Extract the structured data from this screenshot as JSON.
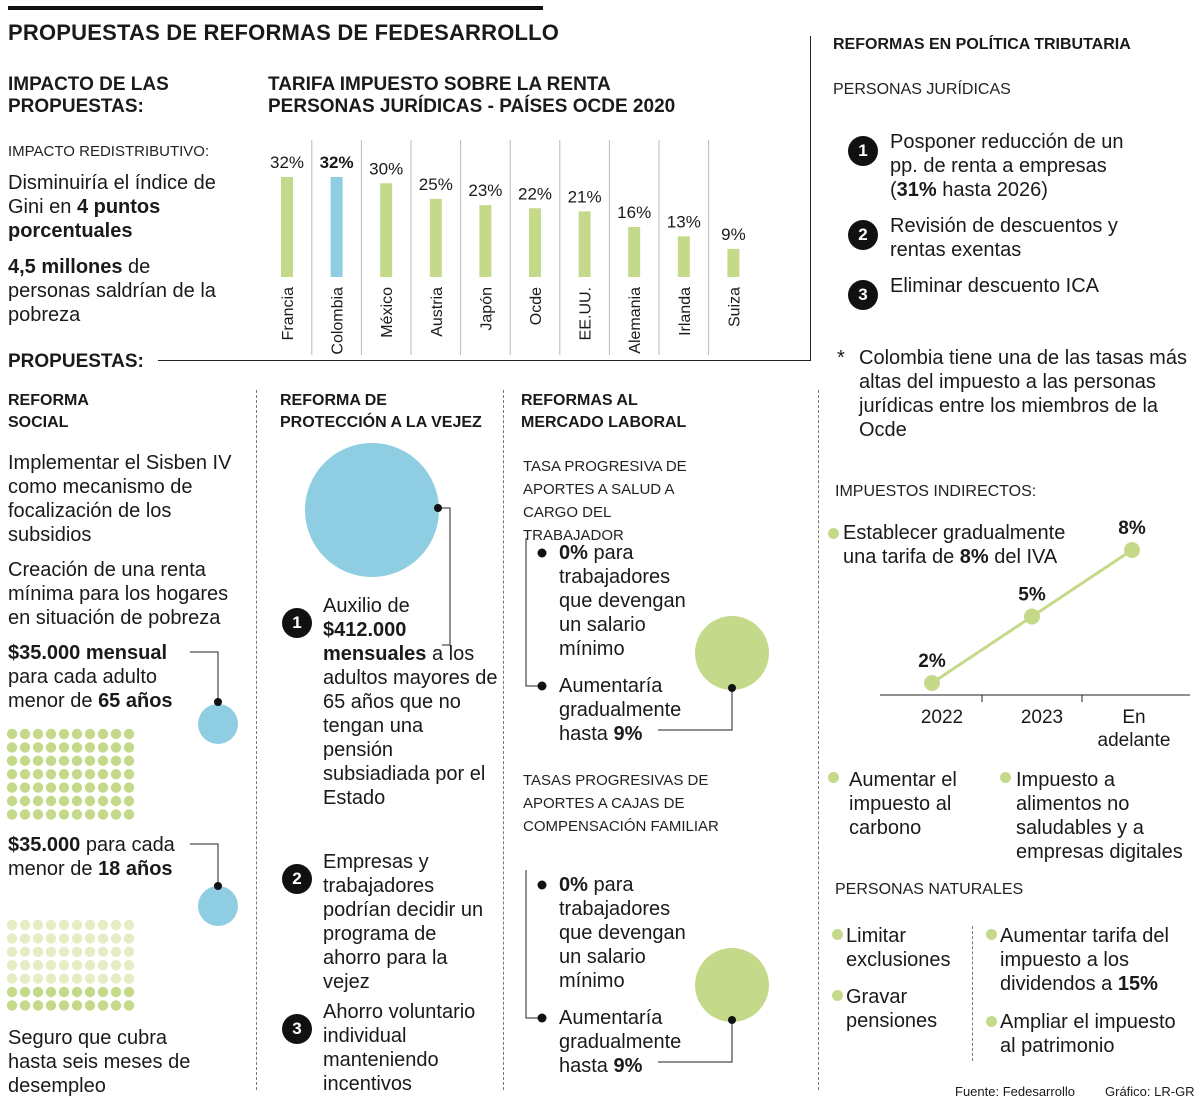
{
  "title": "PROPUESTAS DE REFORMAS DE FEDESARROLLO",
  "impacto": {
    "heading": "IMPACTO DE LAS PROPUESTAS:",
    "redistributivo_label": "IMPACTO REDISTRIBUTIVO:",
    "gini_pre": "Disminuiría el índice de Gini en ",
    "gini_bold": "4 puntos porcentuales",
    "pobreza_bold": "4,5 millones",
    "pobreza_rest": " de personas saldrían de la pobreza"
  },
  "chart_data": {
    "type": "bar",
    "title": "TARIFA IMPUESTO SOBRE LA RENTA PERSONAS JURÍDICAS - PAÍSES OCDE 2020",
    "categories": [
      "Francia",
      "Colombia",
      "México",
      "Austria",
      "Japón",
      "Ocde",
      "EE.UU.",
      "Alemania",
      "Irlanda",
      "Suiza"
    ],
    "values": [
      32,
      32,
      30,
      25,
      23,
      22,
      21,
      16,
      13,
      9
    ],
    "value_labels": [
      "32%",
      "32%",
      "30%",
      "25%",
      "23%",
      "22%",
      "21%",
      "16%",
      "13%",
      "9%"
    ],
    "highlight": "Colombia",
    "unit": "%",
    "ylim": [
      0,
      32
    ],
    "colors": {
      "default": "#c5d98a",
      "highlight": "#8fcde2"
    }
  },
  "propuestas_heading": "PROPUESTAS:",
  "social": {
    "heading": "REFORMA SOCIAL",
    "p1": "Implementar el Sisben IV como mecanismo de focalización de los subsidios",
    "p2": "Creación de una renta mínima para los hogares en situación de pobreza",
    "adult_bold": "$35.000 mensual",
    "adult_rest": " para cada adulto menor de ",
    "adult_bold2": "65 años",
    "child_bold": "$35.000",
    "child_rest": " para cada menor de ",
    "child_bold2": "18 años",
    "p3": "Seguro que cubra hasta seis meses de desempleo"
  },
  "vejez": {
    "heading": "REFORMA DE PROTECCIÓN A LA VEJEZ",
    "items": [
      {
        "num": "1",
        "pre": "Auxilio de ",
        "bold": "$412.000 mensuales",
        "rest": " a los adultos mayores de 65 años que no tengan una pensión subsiadiada por el Estado"
      },
      {
        "num": "2",
        "pre": "Empresas y trabajadores podrían decidir un programa de ahorro para la vejez",
        "bold": "",
        "rest": ""
      },
      {
        "num": "3",
        "pre": "Ahorro voluntario individual manteniendo incentivos",
        "bold": "",
        "rest": ""
      }
    ]
  },
  "laboral": {
    "heading": "REFORMAS AL MERCADO LABORAL",
    "salud_label": "TASA PROGRESIVA DE APORTES A SALUD A CARGO DEL TRABAJADOR",
    "cajas_label": "TASAS PROGRESIVAS DE APORTES A CAJAS DE COMPENSACIÓN FAMILIAR",
    "zero_bold": "0%",
    "zero_rest": " para trabajadores que devengan un salario mínimo",
    "nine_pre": "Aumentaría gradualmente hasta ",
    "nine_bold": "9%"
  },
  "tributaria": {
    "heading": "REFORMAS EN POLÍTICA TRIBUTARIA",
    "juridicas_label": "PERSONAS JURÍDICAS",
    "items": [
      {
        "num": "1",
        "pre": "Posponer reducción de un pp. de renta a empresas (",
        "bold": "31%",
        "rest": " hasta 2026)"
      },
      {
        "num": "2",
        "pre": "Revisión de descuentos y rentas exentas",
        "bold": "",
        "rest": ""
      },
      {
        "num": "3",
        "pre": "Eliminar descuento ICA",
        "bold": "",
        "rest": ""
      }
    ],
    "note_star": "*",
    "note": "Colombia tiene una de las tasas más altas del impuesto a las personas jurídicas entre los miembros de la Ocde",
    "indirectos_label": "IMPUESTOS INDIRECTOS:",
    "iva_pre": "Establecer gradualmente una tarifa de ",
    "iva_bold": "8%",
    "iva_rest": " del IVA",
    "iva_chart": {
      "years": [
        "2022",
        "2023",
        "En adelante"
      ],
      "values": [
        2,
        5,
        8
      ],
      "labels": [
        "2%",
        "5%",
        "8%"
      ]
    },
    "carbono": "Aumentar el impuesto al carbono",
    "alimentos": "Impuesto a alimentos no saludables y a empresas digitales",
    "naturales_label": "PERSONAS NATURALES",
    "limitar": "Limitar exclusiones",
    "gravar": "Gravar pensiones",
    "dividendos_pre": "Aumentar tarifa del impuesto a los dividendos a ",
    "dividendos_bold": "15%",
    "patrimonio": "Ampliar el impuesto al patrimonio"
  },
  "footer": {
    "fuente": "Fuente: Fedesarrollo",
    "grafico": "Gráfico: LR-GR"
  }
}
